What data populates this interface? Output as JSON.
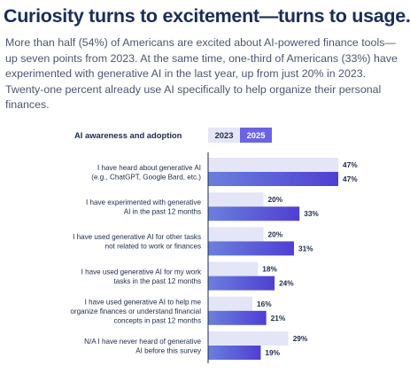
{
  "headline": "Curiosity turns to excitement—turns to usage.",
  "intro": "More than half (54%) of Americans are excited about AI-powered finance tools—up seven points from 2023. At the same time, one-third of Americans (33%) have experimented with generative AI in the last year, up from just 20% in 2023. Twenty-one percent already use AI specifically to help organize their personal finances.",
  "chart_data": {
    "type": "bar",
    "orientation": "horizontal",
    "title": "AI awareness and adoption",
    "categories": [
      [
        "I have heard about generative AI",
        "(e.g., ChatGPT, Google Bard, etc.)"
      ],
      [
        "I have experimented with generative",
        "AI in the past 12 months"
      ],
      [
        "I have used generative AI for other tasks",
        "not related to work or finances"
      ],
      [
        "I have used generative AI for my work",
        "tasks in the past 12 months"
      ],
      [
        "I have used generative AI to help me",
        "organize finances or understand financial",
        "concepts in past 12 months"
      ],
      [
        "N/A I have never heard of generative",
        "AI before this survey"
      ]
    ],
    "series": [
      {
        "name": "2023",
        "values": [
          47,
          20,
          20,
          18,
          16,
          29
        ],
        "labels": [
          "47%",
          "20%",
          "20%",
          "18%",
          "16%",
          "29%"
        ]
      },
      {
        "name": "2025",
        "values": [
          47,
          33,
          31,
          24,
          21,
          19
        ],
        "labels": [
          "47%",
          "33%",
          "31%",
          "24%",
          "21%",
          "19%"
        ]
      }
    ],
    "xlim": [
      0,
      47
    ],
    "grid": false,
    "legend": "top",
    "colors": {
      "2023": "#e4e5f7",
      "2025_start": "#6a80dc",
      "2025_end": "#4f3fd3",
      "axis": "#1d2a4a"
    }
  }
}
